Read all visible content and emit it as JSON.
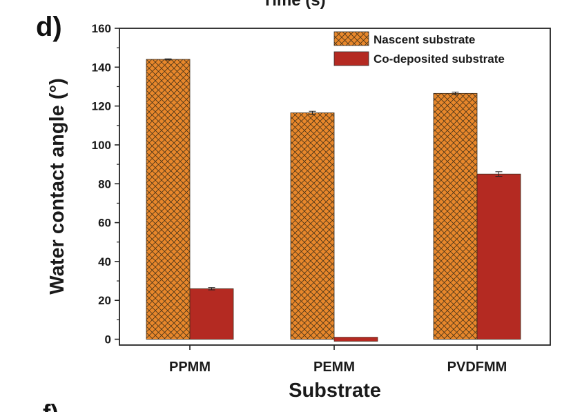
{
  "panel_label": "d)",
  "top_cut_text": "Time (s)",
  "bottom_cut_text": "f)",
  "colors": {
    "nascent_fill": "#e8872b",
    "nascent_hatch": "#4a3418",
    "codeposited_fill": "#b42a22",
    "axis": "#222222"
  },
  "chart_data": {
    "type": "bar",
    "title": "",
    "xlabel": "Substrate",
    "ylabel": "Water contact angle (°)",
    "ylim": [
      -3,
      160
    ],
    "yticks": [
      0,
      20,
      40,
      60,
      80,
      100,
      120,
      140,
      160
    ],
    "ytick_labels": [
      "0",
      "20",
      "40",
      "60",
      "80",
      "100",
      "120",
      "140",
      "160"
    ],
    "categories": [
      "PPMM",
      "PEMM",
      "PVDFMM"
    ],
    "legend_position": "top-right",
    "series": [
      {
        "name": "Nascent substrate",
        "pattern": "crosshatch",
        "values": [
          144,
          116.5,
          126.5
        ],
        "errors": [
          0.3,
          0.8,
          0.7
        ]
      },
      {
        "name": "Co-deposited substrate",
        "pattern": "solid",
        "values": [
          26,
          0,
          85
        ],
        "errors": [
          0.6,
          0,
          1.2
        ]
      }
    ]
  }
}
